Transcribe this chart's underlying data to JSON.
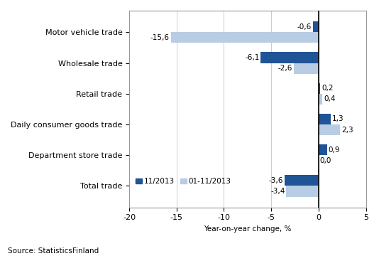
{
  "categories": [
    "Total trade",
    "Department store trade",
    "Daily consumer goods trade",
    "Retail trade",
    "Wholesale trade",
    "Motor vehicle trade"
  ],
  "series_nov": [
    -3.6,
    0.9,
    1.3,
    0.2,
    -6.1,
    -0.6
  ],
  "series_jan_nov": [
    -3.4,
    0.0,
    2.3,
    0.4,
    -2.6,
    -15.6
  ],
  "labels_nov": [
    "-3,6",
    "0,9",
    "1,3",
    "0,2",
    "-6,1",
    "-0,6"
  ],
  "labels_jan_nov": [
    "-3,4",
    "0,0",
    "2,3",
    "0,4",
    "-2,6",
    "-15,6"
  ],
  "color_nov": "#1f5496",
  "color_jan_nov": "#b8cce4",
  "xlabel": "Year-on-year change, %",
  "legend_nov": "11/2013",
  "legend_jan_nov": "01-11/2013",
  "xlim": [
    -20,
    5
  ],
  "xticks": [
    -20,
    -15,
    -10,
    -5,
    0,
    5
  ],
  "source": "Source: StatisticsFinland",
  "bar_height": 0.35,
  "label_fontsize": 7.5,
  "tick_fontsize": 8,
  "source_fontsize": 7.5
}
